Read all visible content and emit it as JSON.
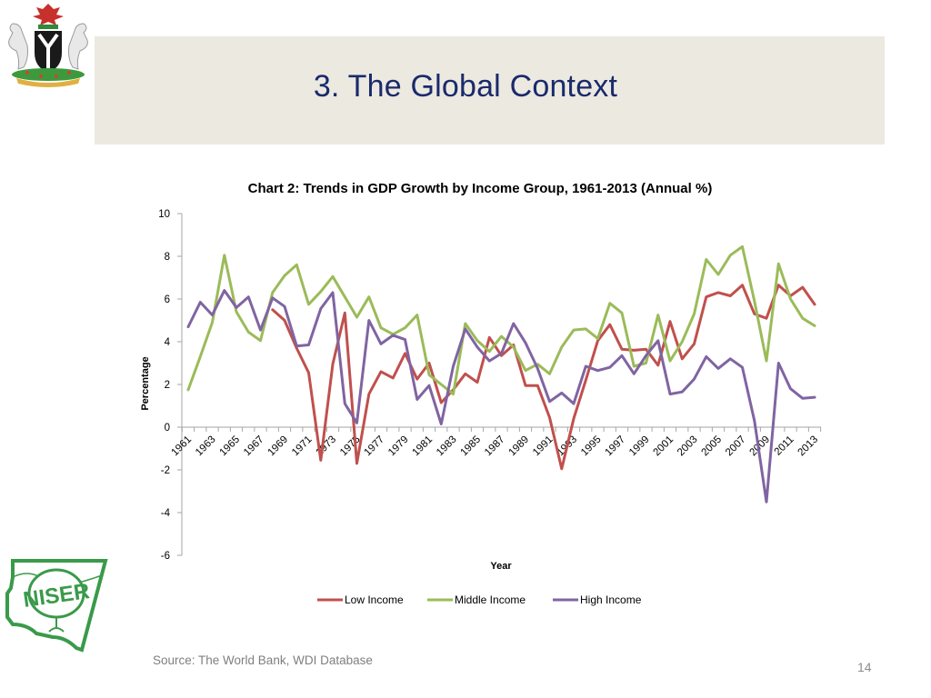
{
  "slide": {
    "title": "3. The Global Context",
    "source": "Source: The World Bank, WDI Database",
    "page_number": "14",
    "logos": {
      "top_left": "nigeria-coat-of-arms",
      "bottom_left": "NISER",
      "bottom_left_text": "NISER"
    },
    "colors": {
      "title_band": "#ece9e0",
      "title_text": "#1a2a6c",
      "niser_green": "#3a9a4a"
    }
  },
  "chart_data": {
    "type": "line",
    "title": "Chart 2: Trends in GDP Growth by Income Group, 1961-2013 (Annual %)",
    "xlabel": "Year",
    "ylabel": "Percentage",
    "ylim": [
      -6,
      10
    ],
    "yticks": [
      10,
      8,
      6,
      4,
      2,
      0,
      -2,
      -4,
      -6
    ],
    "xlim": [
      1961,
      2013
    ],
    "xtick_labels": [
      "1961",
      "1963",
      "1965",
      "1967",
      "1969",
      "1971",
      "1973",
      "1975",
      "1977",
      "1979",
      "1981",
      "1983",
      "1985",
      "1987",
      "1989",
      "1991",
      "1993",
      "1995",
      "1997",
      "1999",
      "2001",
      "2003",
      "2005",
      "2007",
      "2009",
      "2011",
      "2013"
    ],
    "grid": false,
    "legend": "bottom",
    "x": [
      1961,
      1962,
      1963,
      1964,
      1965,
      1966,
      1967,
      1968,
      1969,
      1970,
      1971,
      1972,
      1973,
      1974,
      1975,
      1976,
      1977,
      1978,
      1979,
      1980,
      1981,
      1982,
      1983,
      1984,
      1985,
      1986,
      1987,
      1988,
      1989,
      1990,
      1991,
      1992,
      1993,
      1994,
      1995,
      1996,
      1997,
      1998,
      1999,
      2000,
      2001,
      2002,
      2003,
      2004,
      2005,
      2006,
      2007,
      2008,
      2009,
      2010,
      2011,
      2012,
      2013
    ],
    "series": [
      {
        "name": "Low Income",
        "color": "#c0504d",
        "start_year": 1968,
        "values": [
          null,
          null,
          null,
          null,
          null,
          null,
          null,
          5.5,
          5.0,
          3.7,
          2.55,
          -1.55,
          2.95,
          5.35,
          -1.7,
          1.55,
          2.6,
          2.3,
          3.45,
          2.25,
          3.0,
          1.15,
          1.75,
          2.5,
          2.1,
          4.2,
          3.35,
          3.85,
          1.95,
          1.95,
          0.45,
          -1.95,
          0.4,
          2.2,
          4.05,
          4.8,
          3.65,
          3.6,
          3.65,
          2.9,
          4.95,
          3.2,
          3.9,
          6.1,
          6.3,
          6.15,
          6.65,
          5.3,
          5.1,
          6.65,
          6.15,
          6.55,
          5.75
        ]
      },
      {
        "name": "Middle Income",
        "color": "#9bbb59",
        "values": [
          1.75,
          3.3,
          4.9,
          8.05,
          5.4,
          4.45,
          4.05,
          6.3,
          7.1,
          7.6,
          5.75,
          6.35,
          7.05,
          6.1,
          5.15,
          6.1,
          4.65,
          4.35,
          4.65,
          5.25,
          2.45,
          2.0,
          1.55,
          4.85,
          4.05,
          3.55,
          4.25,
          3.75,
          2.65,
          2.95,
          2.5,
          3.75,
          4.55,
          4.6,
          4.15,
          5.8,
          5.35,
          2.85,
          3.0,
          5.25,
          3.1,
          4.0,
          5.3,
          7.85,
          7.15,
          8.05,
          8.45,
          5.9,
          3.1,
          7.65,
          6.0,
          5.1,
          4.75
        ]
      },
      {
        "name": "High Income",
        "color": "#8064a2",
        "values": [
          4.7,
          5.85,
          5.25,
          6.4,
          5.6,
          6.1,
          4.55,
          6.05,
          5.65,
          3.8,
          3.85,
          5.55,
          6.3,
          1.1,
          0.2,
          5.0,
          3.9,
          4.3,
          4.1,
          1.3,
          1.95,
          0.15,
          2.85,
          4.6,
          3.75,
          3.1,
          3.45,
          4.85,
          3.95,
          2.75,
          1.2,
          1.6,
          1.1,
          2.85,
          2.65,
          2.8,
          3.35,
          2.5,
          3.35,
          4.05,
          1.55,
          1.65,
          2.25,
          3.3,
          2.75,
          3.2,
          2.8,
          0.3,
          -3.5,
          3.0,
          1.8,
          1.35,
          1.4
        ]
      }
    ]
  }
}
